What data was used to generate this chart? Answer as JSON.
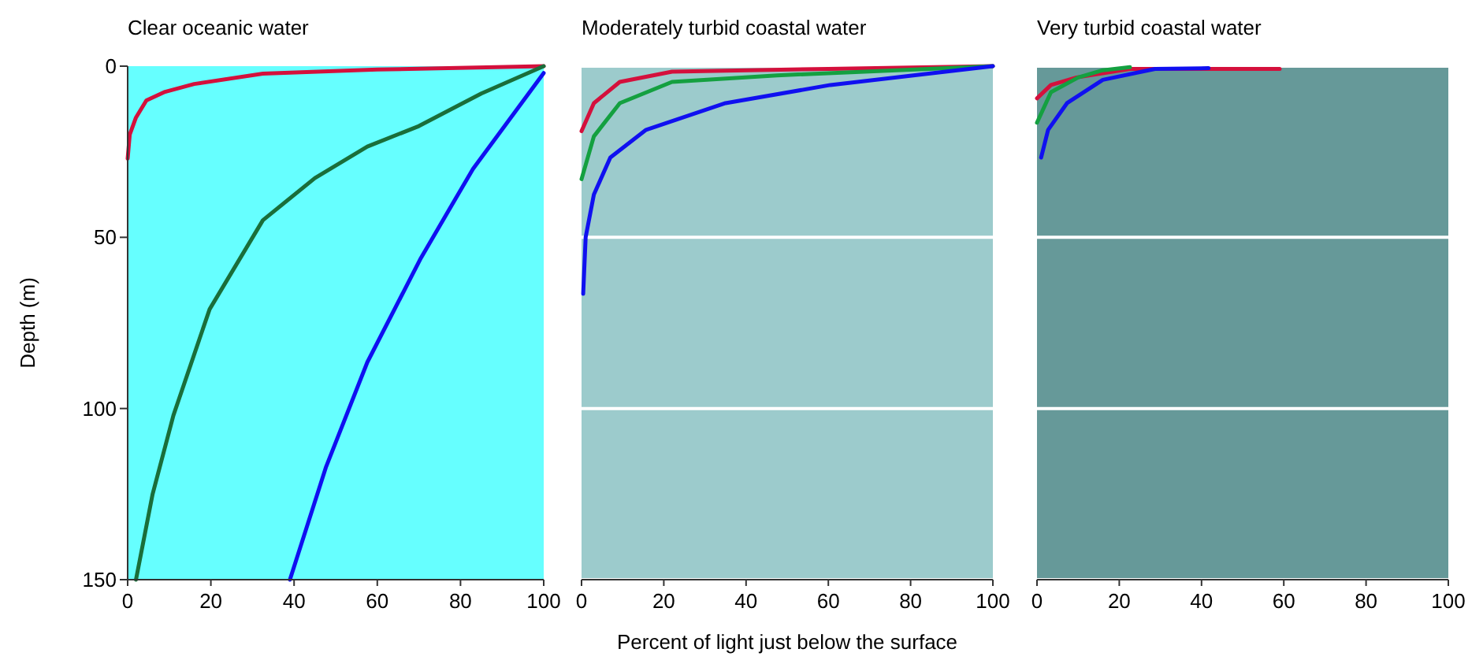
{
  "chart_data": [
    {
      "type": "line",
      "title": "Clear oceanic water",
      "ylabel": "Depth (m)",
      "xlim": [
        0,
        100
      ],
      "ylim": [
        150,
        0
      ],
      "xticks": [
        0,
        20,
        40,
        60,
        80,
        100
      ],
      "yticks": [
        0,
        50,
        100,
        150
      ],
      "grid": false,
      "series": [
        {
          "color": "#d4103c",
          "x": [
            100,
            60,
            32.5,
            16,
            9,
            4.5,
            2,
            0.5,
            0
          ],
          "values": [
            0,
            1,
            2.2,
            5.2,
            7.5,
            10,
            15,
            20,
            27
          ]
        },
        {
          "color": "#1a6e3a",
          "x": [
            100,
            85,
            70,
            57.6,
            45,
            32.5,
            19.7,
            11,
            6,
            2
          ],
          "values": [
            0,
            8,
            17.5,
            23.5,
            32.7,
            45,
            71,
            102,
            125,
            150
          ]
        },
        {
          "color": "#1010f0",
          "x": [
            100,
            83,
            70.5,
            57.6,
            47.7,
            39
          ],
          "values": [
            2,
            30,
            56,
            86.5,
            117,
            150
          ]
        }
      ]
    },
    {
      "type": "line",
      "title": "Moderately turbid coastal water",
      "xlabel": "Percent of light just below the surface",
      "xlim": [
        0,
        100
      ],
      "ylim": [
        150,
        0
      ],
      "xticks": [
        0,
        20,
        40,
        60,
        80,
        100
      ],
      "yticks": [
        0,
        50,
        100,
        150
      ],
      "tick_labels": "x",
      "grid": "y",
      "series": [
        {
          "color": "#d4103c",
          "x": [
            100,
            60,
            22,
            9.3,
            3,
            0
          ],
          "values": [
            0,
            0.8,
            1.6,
            4.6,
            10.8,
            19
          ]
        },
        {
          "color": "#14a040",
          "x": [
            100,
            47.5,
            22,
            9.3,
            3,
            0
          ],
          "values": [
            0,
            2.7,
            4.6,
            10.8,
            20.5,
            33
          ]
        },
        {
          "color": "#1010f0",
          "x": [
            100,
            60.5,
            35,
            15.7,
            7,
            3,
            1,
            0.4
          ],
          "values": [
            0,
            5.5,
            10.8,
            18.6,
            26.7,
            37.5,
            50,
            66.5
          ]
        }
      ]
    },
    {
      "type": "line",
      "title": "Very turbid coastal water",
      "xlim": [
        0,
        100
      ],
      "ylim": [
        150,
        0
      ],
      "xticks": [
        0,
        20,
        40,
        60,
        80,
        100
      ],
      "yticks": [
        0,
        50,
        100,
        150
      ],
      "tick_labels": "x",
      "grid": "y",
      "series": [
        {
          "color": "#d4103c",
          "x": [
            59,
            41.7,
            22.6,
            9.6,
            3.4,
            0
          ],
          "values": [
            0.8,
            0.8,
            0.8,
            3.3,
            5.5,
            9.4
          ]
        },
        {
          "color": "#14a040",
          "x": [
            22.6,
            16,
            10,
            3.4,
            0
          ],
          "values": [
            0.3,
            1.2,
            3.3,
            7.6,
            16.5
          ]
        },
        {
          "color": "#1010f0",
          "x": [
            41.7,
            28.7,
            16,
            7.3,
            2.7,
            1
          ],
          "values": [
            0.6,
            0.8,
            4,
            10.8,
            18.6,
            26.7
          ]
        }
      ]
    }
  ]
}
